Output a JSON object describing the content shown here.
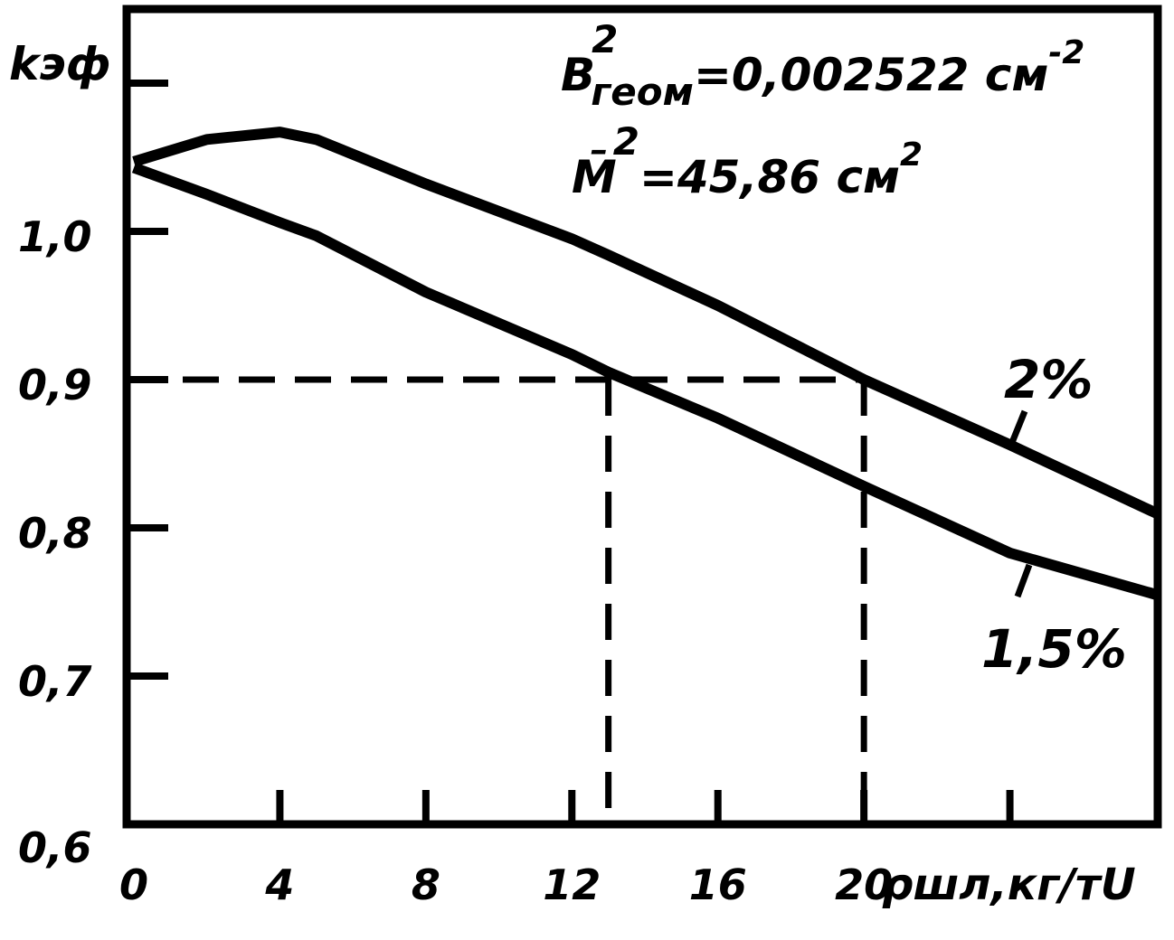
{
  "chart_data": {
    "type": "line",
    "y_label": "kэф",
    "x_label": "ρшл,кг/тU",
    "x": [
      0,
      2,
      4,
      5,
      8,
      12,
      13,
      16,
      20,
      24,
      28
    ],
    "series": [
      {
        "name": "2%",
        "color": "#000000",
        "values": [
          1.047,
          1.062,
          1.067,
          1.062,
          1.032,
          0.995,
          0.984,
          0.95,
          0.9,
          0.856,
          0.81
        ]
      },
      {
        "name": "1,5%",
        "color": "#000000",
        "values": [
          1.043,
          1.025,
          1.006,
          0.997,
          0.959,
          0.917,
          0.905,
          0.874,
          0.828,
          0.783,
          0.755
        ]
      }
    ],
    "xlim": [
      0,
      28
    ],
    "xticks": [
      0,
      4,
      8,
      12,
      16,
      20
    ],
    "unlabeled_xticks": [
      24
    ],
    "ylim": [
      0.6,
      1.15
    ],
    "yticks": [
      {
        "value": 0.6,
        "label": "0,6"
      },
      {
        "value": 0.7,
        "label": "0,7"
      },
      {
        "value": 0.8,
        "label": "0,8"
      },
      {
        "value": 0.9,
        "label": "0,9"
      },
      {
        "value": 1.0,
        "label": "1,0"
      }
    ],
    "unlabeled_yticks": [
      1.1
    ],
    "reference": {
      "y": 0.9,
      "x": [
        13,
        20
      ]
    },
    "annotations": [
      {
        "base": "B",
        "sup": "2",
        "sub": "геом",
        "rest": "=0,002522 см",
        "rest_sup": "-2"
      },
      {
        "base": "M̄",
        "sup": "2",
        "rest": "=45,86 см",
        "rest_sup": "2"
      }
    ]
  }
}
